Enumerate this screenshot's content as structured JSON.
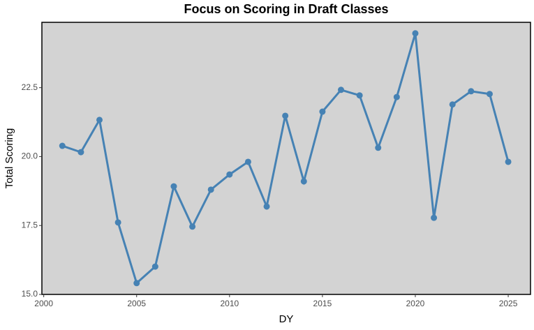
{
  "chart_data": {
    "type": "line",
    "title": "Focus on Scoring in Draft Classes",
    "x_label": "DY",
    "y_label": "Total Scoring",
    "x": [
      2001,
      2002,
      2003,
      2004,
      2005,
      2006,
      2007,
      2008,
      2009,
      2010,
      2011,
      2012,
      2013,
      2014,
      2015,
      2016,
      2017,
      2018,
      2019,
      2020,
      2021,
      2022,
      2023,
      2024,
      2025
    ],
    "series": [
      {
        "name": "Total Scoring",
        "color": "#4682b4",
        "values": [
          20.39,
          20.16,
          21.33,
          17.61,
          15.41,
          16.01,
          18.92,
          17.46,
          18.8,
          19.35,
          19.81,
          18.19,
          21.48,
          19.1,
          21.63,
          22.42,
          22.22,
          20.32,
          22.16,
          24.47,
          17.78,
          21.89,
          22.37,
          22.27,
          19.81
        ]
      }
    ],
    "xlim": [
      1999.9,
      2026.2
    ],
    "xticks": [
      2000,
      2005,
      2010,
      2015,
      2020,
      2025
    ],
    "ylim": [
      15,
      24.87
    ],
    "yticks": [
      {
        "value": 15,
        "label": "15.0"
      },
      17.5,
      {
        "value": 20,
        "label": "20.0"
      },
      22.5
    ],
    "grid": false
  }
}
